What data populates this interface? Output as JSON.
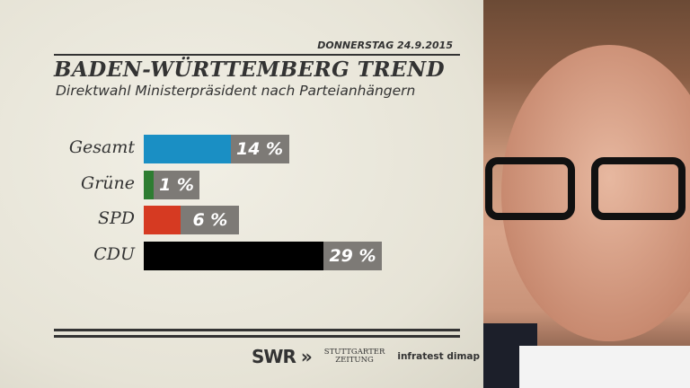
{
  "header": {
    "date": "DONNERSTAG  24.9.2015",
    "title": "BADEN-WÜRTTEMBERG TREND",
    "subtitle": "Direktwahl Ministerpräsident nach Parteianhängern"
  },
  "chart_data": {
    "type": "bar",
    "orientation": "horizontal",
    "title": "BADEN-WÜRTTEMBERG TREND",
    "subtitle": "Direktwahl Ministerpräsident nach Parteianhängern",
    "categories": [
      "Gesamt",
      "Grüne",
      "SPD",
      "CDU"
    ],
    "values": [
      14,
      1,
      6,
      29
    ],
    "value_labels": [
      "14 %",
      "1 %",
      "6 %",
      "29 %"
    ],
    "colors": [
      "#1a8fc4",
      "#2e7d32",
      "#d63a22",
      "#000000"
    ],
    "unit": "%",
    "xlim": [
      0,
      29
    ]
  },
  "footer": {
    "logo1": "SWR »",
    "logo2_line1": "STUTTGARTER",
    "logo2_line2": "ZEITUNG",
    "logo3": "infratest dimap"
  }
}
